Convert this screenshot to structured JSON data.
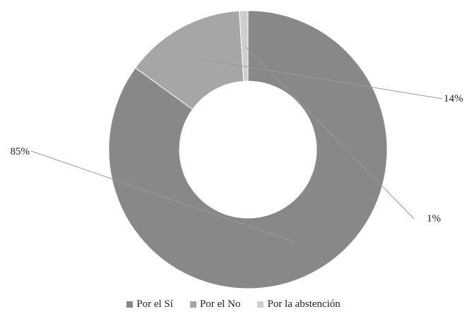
{
  "chart_data": {
    "type": "pie",
    "variant": "donut",
    "categories": [
      "Por el Sí",
      "Por el No",
      "Por la abstención"
    ],
    "values": [
      85,
      14,
      1
    ],
    "data_labels": [
      "85%",
      "14%",
      "1%"
    ],
    "colors": [
      "#888888",
      "#a6a6a6",
      "#cfcfcf"
    ],
    "legend_position": "bottom",
    "title": ""
  }
}
